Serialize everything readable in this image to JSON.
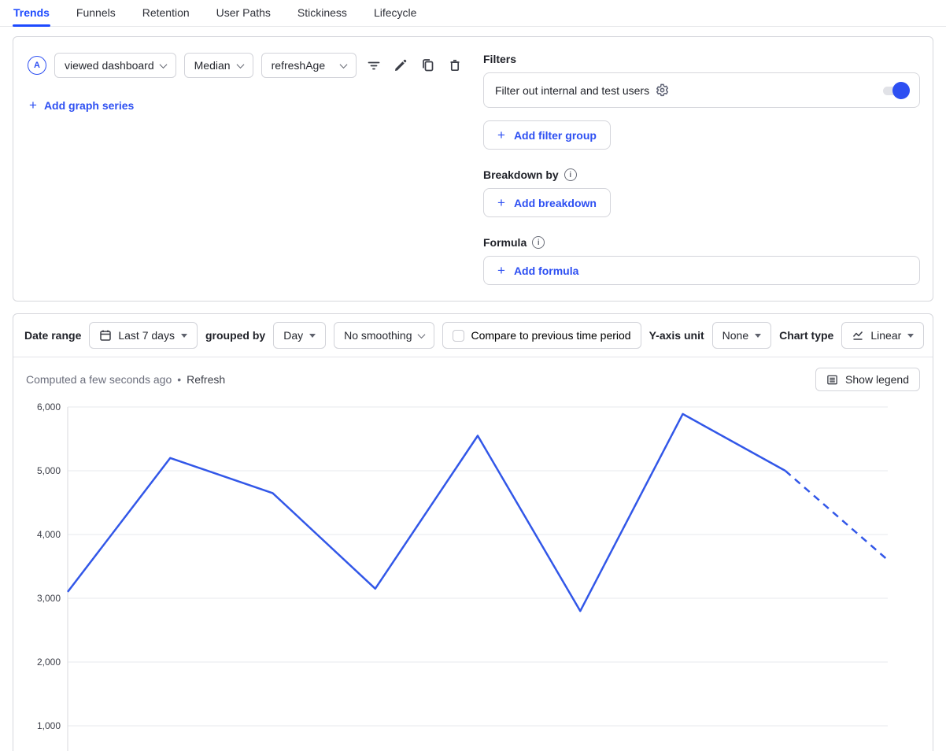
{
  "tabs": {
    "items": [
      {
        "label": "Trends",
        "active": true
      },
      {
        "label": "Funnels",
        "active": false
      },
      {
        "label": "Retention",
        "active": false
      },
      {
        "label": "User Paths",
        "active": false
      },
      {
        "label": "Stickiness",
        "active": false
      },
      {
        "label": "Lifecycle",
        "active": false
      }
    ]
  },
  "glyphs": {
    "plus": "+",
    "dot": "•",
    "info": "i"
  },
  "query_panel": {
    "series": {
      "badge": "A",
      "event": "viewed dashboard",
      "aggregation": "Median",
      "property": "refreshAge",
      "action_icons": [
        "filter-icon",
        "edit-icon",
        "duplicate-icon",
        "delete-icon"
      ],
      "add_series_label": "Add graph series"
    },
    "filters": {
      "heading": "Filters",
      "internal_filter_label": "Filter out internal and test users",
      "internal_filter_on": true,
      "add_group_label": "Add filter group"
    },
    "breakdown": {
      "heading": "Breakdown by",
      "add_label": "Add breakdown"
    },
    "formula": {
      "heading": "Formula",
      "add_label": "Add formula"
    }
  },
  "controls_bar": {
    "date_range_label": "Date range",
    "date_range_value": "Last 7 days",
    "grouped_by_label": "grouped by",
    "interval_value": "Day",
    "smoothing_value": "No smoothing",
    "compare_label": "Compare to previous time period",
    "compare_checked": false,
    "yaxis_label": "Y-axis unit",
    "yaxis_value": "None",
    "chart_type_label": "Chart type",
    "chart_type_value": "Linear"
  },
  "chart_header": {
    "computed_text": "Computed a few seconds ago",
    "refresh_label": "Refresh",
    "show_legend_label": "Show legend"
  },
  "chart_data": {
    "type": "line",
    "series": [
      {
        "name": "viewed dashboard · Median · refreshAge",
        "values": [
          3100,
          5200,
          4650,
          3150,
          5550,
          2800,
          5890,
          5000,
          3600
        ],
        "dashed_from_index": 7
      }
    ],
    "x_labels": [],
    "y_ticks": [
      1000,
      2000,
      3000,
      4000,
      5000,
      6000
    ],
    "y_tick_labels": [
      "1,000",
      "2,000",
      "3,000",
      "4,000",
      "5,000",
      "6,000"
    ],
    "ylim_visible": [
      1000,
      6000
    ],
    "grid": "horizontal",
    "legend_visible": false,
    "line_color": "#3257e8",
    "note": "final segment dashed (incomplete current period)"
  },
  "colors": {
    "accent": "#1d4aff",
    "button_blue": "#2d4ff2",
    "chart_line": "#3257e8",
    "border": "#d6d7dc",
    "gridline": "#e7e8ec",
    "muted_text": "#6b6e7c"
  }
}
